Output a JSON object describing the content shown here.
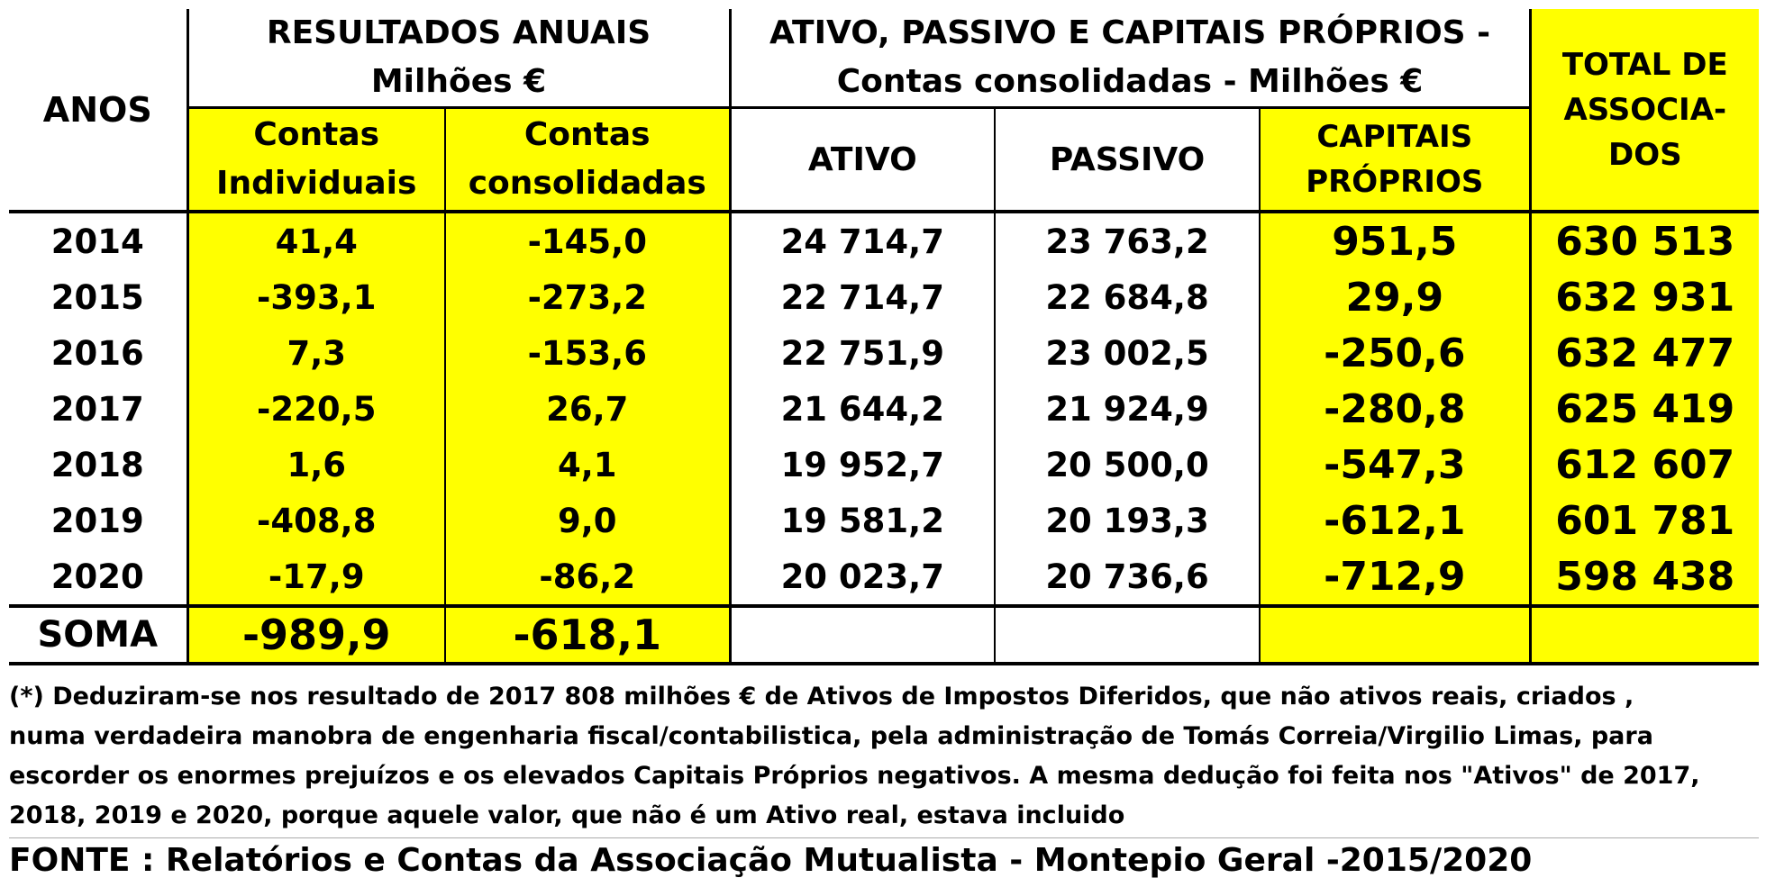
{
  "header": {
    "anos": "ANOS",
    "resultados_line1": "RESULTADOS  ANUAIS",
    "resultados_line2": "Milhões €",
    "ativo_group_line1": "ATIVO, PASSIVO E CAPITAIS PRÓPRIOS -",
    "ativo_group_line2": "Contas consolidadas - Milhões €",
    "total_line1": "TOTAL DE",
    "total_line2": "ASSOCIA-",
    "total_line3": "DOS",
    "col_individuais_line1": "Contas",
    "col_individuais_line2": "Individuais",
    "col_consolidadas_line1": "Contas",
    "col_consolidadas_line2": "consolidadas",
    "col_ativo": "ATIVO",
    "col_passivo": "PASSIVO",
    "col_capitais_line1": "CAPITAIS",
    "col_capitais_line2": "PRÓPRIOS"
  },
  "rows": [
    {
      "ano": "2014",
      "individuais": "41,4",
      "consolidadas": "-145,0",
      "ativo": "24 714,7",
      "passivo": "23 763,2",
      "capitais": "951,5",
      "associados": "630 513"
    },
    {
      "ano": "2015",
      "individuais": "-393,1",
      "consolidadas": "-273,2",
      "ativo": "22 714,7",
      "passivo": "22 684,8",
      "capitais": "29,9",
      "associados": "632 931"
    },
    {
      "ano": "2016",
      "individuais": "7,3",
      "consolidadas": "-153,6",
      "ativo": "22 751,9",
      "passivo": "23 002,5",
      "capitais": "-250,6",
      "associados": "632 477"
    },
    {
      "ano": "2017",
      "individuais": "-220,5",
      "consolidadas": "26,7",
      "ativo": "21 644,2",
      "passivo": "21 924,9",
      "capitais": "-280,8",
      "associados": "625 419"
    },
    {
      "ano": "2018",
      "individuais": "1,6",
      "consolidadas": "4,1",
      "ativo": "19 952,7",
      "passivo": "20 500,0",
      "capitais": "-547,3",
      "associados": "612 607"
    },
    {
      "ano": "2019",
      "individuais": "-408,8",
      "consolidadas": "9,0",
      "ativo": "19 581,2",
      "passivo": "20 193,3",
      "capitais": "-612,1",
      "associados": "601 781"
    },
    {
      "ano": "2020",
      "individuais": "-17,9",
      "consolidadas": "-86,2",
      "ativo": "20 023,7",
      "passivo": "20 736,6",
      "capitais": "-712,9",
      "associados": "598 438"
    }
  ],
  "soma": {
    "label": "SOMA",
    "individuais": "-989,9",
    "consolidadas": "-618,1"
  },
  "note": {
    "line1": "(*) Deduziram-se nos resultado de 2017  808 milhões € de Ativos de Impostos Diferidos, que não ativos reais, criados ,",
    "line2": "numa verdadeira manobra de engenharia fiscal/contabilistica, pela administração de Tomás Correia/Virgilio Limas, para",
    "line3": "escorder os enormes prejuízos e os elevados Capitais Próprios negativos. A mesma dedução foi feita nos \"Ativos\" de 2017,",
    "line4": "2018, 2019 e 2020, porque aquele valor, que não é um Ativo real, estava incluido"
  },
  "source": "FONTE : Relatórios e Contas da Associação Mutualista - Montepio Geral -2015/2020",
  "colors": {
    "highlight": "#ffff00",
    "border": "#000000",
    "text": "#000000"
  }
}
